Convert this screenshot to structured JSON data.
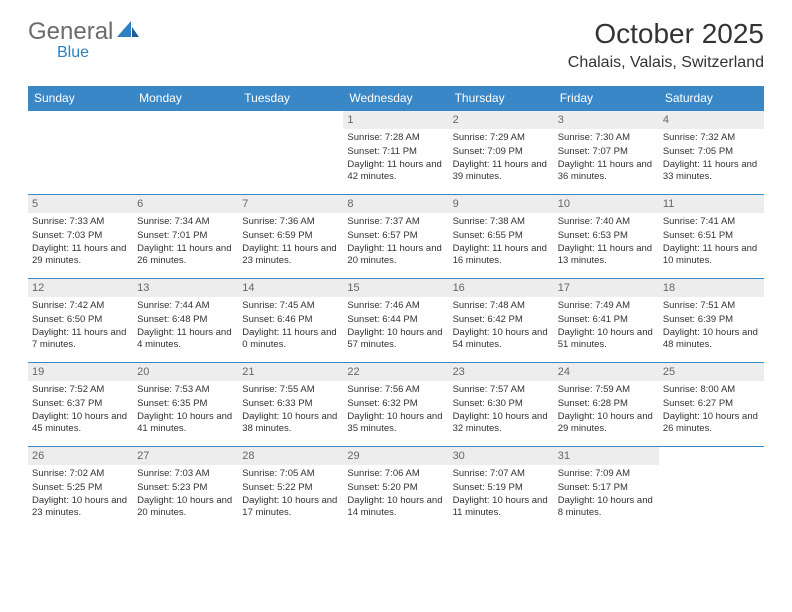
{
  "brand": {
    "general": "General",
    "blue": "Blue"
  },
  "title": "October 2025",
  "location": "Chalais, Valais, Switzerland",
  "colors": {
    "header_bg": "#3a87c7",
    "header_text": "#ffffff",
    "daynum_bg": "#ededed",
    "border": "#3a87c7",
    "text": "#333333",
    "logo_gray": "#6b6b6b",
    "logo_blue": "#2f7fc2"
  },
  "weekdays": [
    "Sunday",
    "Monday",
    "Tuesday",
    "Wednesday",
    "Thursday",
    "Friday",
    "Saturday"
  ],
  "layout": {
    "first_weekday_index": 3,
    "days_in_month": 31
  },
  "days": [
    {
      "n": 1,
      "sunrise": "7:28 AM",
      "sunset": "7:11 PM",
      "daylight": "11 hours and 42 minutes."
    },
    {
      "n": 2,
      "sunrise": "7:29 AM",
      "sunset": "7:09 PM",
      "daylight": "11 hours and 39 minutes."
    },
    {
      "n": 3,
      "sunrise": "7:30 AM",
      "sunset": "7:07 PM",
      "daylight": "11 hours and 36 minutes."
    },
    {
      "n": 4,
      "sunrise": "7:32 AM",
      "sunset": "7:05 PM",
      "daylight": "11 hours and 33 minutes."
    },
    {
      "n": 5,
      "sunrise": "7:33 AM",
      "sunset": "7:03 PM",
      "daylight": "11 hours and 29 minutes."
    },
    {
      "n": 6,
      "sunrise": "7:34 AM",
      "sunset": "7:01 PM",
      "daylight": "11 hours and 26 minutes."
    },
    {
      "n": 7,
      "sunrise": "7:36 AM",
      "sunset": "6:59 PM",
      "daylight": "11 hours and 23 minutes."
    },
    {
      "n": 8,
      "sunrise": "7:37 AM",
      "sunset": "6:57 PM",
      "daylight": "11 hours and 20 minutes."
    },
    {
      "n": 9,
      "sunrise": "7:38 AM",
      "sunset": "6:55 PM",
      "daylight": "11 hours and 16 minutes."
    },
    {
      "n": 10,
      "sunrise": "7:40 AM",
      "sunset": "6:53 PM",
      "daylight": "11 hours and 13 minutes."
    },
    {
      "n": 11,
      "sunrise": "7:41 AM",
      "sunset": "6:51 PM",
      "daylight": "11 hours and 10 minutes."
    },
    {
      "n": 12,
      "sunrise": "7:42 AM",
      "sunset": "6:50 PM",
      "daylight": "11 hours and 7 minutes."
    },
    {
      "n": 13,
      "sunrise": "7:44 AM",
      "sunset": "6:48 PM",
      "daylight": "11 hours and 4 minutes."
    },
    {
      "n": 14,
      "sunrise": "7:45 AM",
      "sunset": "6:46 PM",
      "daylight": "11 hours and 0 minutes."
    },
    {
      "n": 15,
      "sunrise": "7:46 AM",
      "sunset": "6:44 PM",
      "daylight": "10 hours and 57 minutes."
    },
    {
      "n": 16,
      "sunrise": "7:48 AM",
      "sunset": "6:42 PM",
      "daylight": "10 hours and 54 minutes."
    },
    {
      "n": 17,
      "sunrise": "7:49 AM",
      "sunset": "6:41 PM",
      "daylight": "10 hours and 51 minutes."
    },
    {
      "n": 18,
      "sunrise": "7:51 AM",
      "sunset": "6:39 PM",
      "daylight": "10 hours and 48 minutes."
    },
    {
      "n": 19,
      "sunrise": "7:52 AM",
      "sunset": "6:37 PM",
      "daylight": "10 hours and 45 minutes."
    },
    {
      "n": 20,
      "sunrise": "7:53 AM",
      "sunset": "6:35 PM",
      "daylight": "10 hours and 41 minutes."
    },
    {
      "n": 21,
      "sunrise": "7:55 AM",
      "sunset": "6:33 PM",
      "daylight": "10 hours and 38 minutes."
    },
    {
      "n": 22,
      "sunrise": "7:56 AM",
      "sunset": "6:32 PM",
      "daylight": "10 hours and 35 minutes."
    },
    {
      "n": 23,
      "sunrise": "7:57 AM",
      "sunset": "6:30 PM",
      "daylight": "10 hours and 32 minutes."
    },
    {
      "n": 24,
      "sunrise": "7:59 AM",
      "sunset": "6:28 PM",
      "daylight": "10 hours and 29 minutes."
    },
    {
      "n": 25,
      "sunrise": "8:00 AM",
      "sunset": "6:27 PM",
      "daylight": "10 hours and 26 minutes."
    },
    {
      "n": 26,
      "sunrise": "7:02 AM",
      "sunset": "5:25 PM",
      "daylight": "10 hours and 23 minutes."
    },
    {
      "n": 27,
      "sunrise": "7:03 AM",
      "sunset": "5:23 PM",
      "daylight": "10 hours and 20 minutes."
    },
    {
      "n": 28,
      "sunrise": "7:05 AM",
      "sunset": "5:22 PM",
      "daylight": "10 hours and 17 minutes."
    },
    {
      "n": 29,
      "sunrise": "7:06 AM",
      "sunset": "5:20 PM",
      "daylight": "10 hours and 14 minutes."
    },
    {
      "n": 30,
      "sunrise": "7:07 AM",
      "sunset": "5:19 PM",
      "daylight": "10 hours and 11 minutes."
    },
    {
      "n": 31,
      "sunrise": "7:09 AM",
      "sunset": "5:17 PM",
      "daylight": "10 hours and 8 minutes."
    }
  ],
  "labels": {
    "sunrise": "Sunrise:",
    "sunset": "Sunset:",
    "daylight": "Daylight:"
  }
}
